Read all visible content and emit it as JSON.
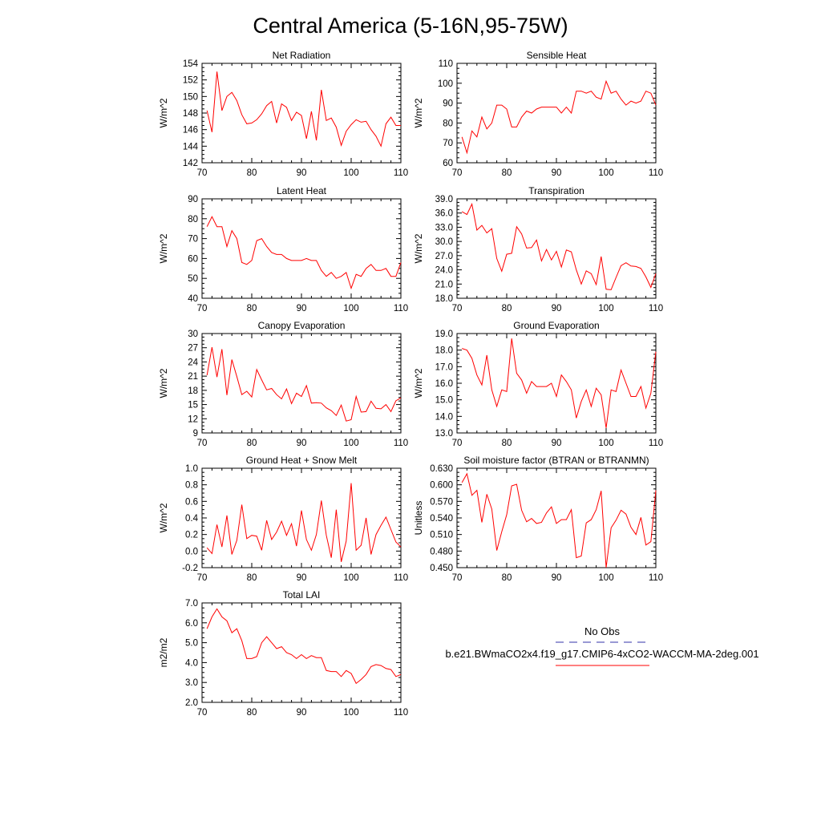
{
  "title": "Central America (5-16N,95-75W)",
  "colors": {
    "model": "#ff0000",
    "obs": "#3333aa",
    "axis": "#000000"
  },
  "legend": {
    "obs_label": "No Obs",
    "model_label": "b.e21.BWmaCO2x4.f19_g17.CMIP6-4xCO2-WACCM-MA-2deg.001"
  },
  "chart_data": [
    {
      "type": "line",
      "title": "Net Radiation",
      "ylabel": "W/m^2",
      "xlim": [
        70,
        110
      ],
      "ylim": [
        142,
        154
      ],
      "xticks": [
        70,
        80,
        90,
        100,
        110
      ],
      "yticks": [
        142,
        144,
        146,
        148,
        150,
        152,
        154
      ],
      "ytick_labels": [
        "142",
        "144",
        "146",
        "148",
        "150",
        "152",
        "154"
      ],
      "x": [
        71,
        72,
        73,
        74,
        75,
        76,
        77,
        78,
        79,
        80,
        81,
        82,
        83,
        84,
        85,
        86,
        87,
        88,
        89,
        90,
        91,
        92,
        93,
        94,
        95,
        96,
        97,
        98,
        99,
        100,
        101,
        102,
        103,
        104,
        105,
        106,
        107,
        108,
        109,
        110
      ],
      "values": [
        148.3,
        145.7,
        153.0,
        148.3,
        150.0,
        150.5,
        149.5,
        147.8,
        146.7,
        146.8,
        147.2,
        147.9,
        148.9,
        149.4,
        146.8,
        149.1,
        148.7,
        147.1,
        148.1,
        147.7,
        144.9,
        148.2,
        144.7,
        150.8,
        147.1,
        147.4,
        146.3,
        144.1,
        145.8,
        146.6,
        147.2,
        146.9,
        147.0,
        146.0,
        145.2,
        144.0,
        146.7,
        147.5,
        146.5,
        146.5
      ]
    },
    {
      "type": "line",
      "title": "Sensible Heat",
      "ylabel": "W/m^2",
      "xlim": [
        70,
        110
      ],
      "ylim": [
        60,
        110
      ],
      "xticks": [
        70,
        80,
        90,
        100,
        110
      ],
      "yticks": [
        60,
        70,
        80,
        90,
        100,
        110
      ],
      "ytick_labels": [
        "60",
        "70",
        "80",
        "90",
        "100",
        "110"
      ],
      "x": [
        71,
        72,
        73,
        74,
        75,
        76,
        77,
        78,
        79,
        80,
        81,
        82,
        83,
        84,
        85,
        86,
        87,
        88,
        89,
        90,
        91,
        92,
        93,
        94,
        95,
        96,
        97,
        98,
        99,
        100,
        101,
        102,
        103,
        104,
        105,
        106,
        107,
        108,
        109,
        110
      ],
      "values": [
        73,
        65,
        76,
        73,
        83,
        77,
        80,
        89,
        89,
        87,
        78,
        78,
        83,
        86,
        85,
        87,
        88,
        88,
        88,
        88,
        85,
        88,
        85,
        96,
        96,
        95,
        96,
        93,
        92,
        101,
        95,
        96,
        92,
        89,
        91,
        90,
        91,
        96,
        95,
        89
      ]
    },
    {
      "type": "line",
      "title": "Latent Heat",
      "ylabel": "W/m^2",
      "xlim": [
        70,
        110
      ],
      "ylim": [
        40,
        90
      ],
      "xticks": [
        70,
        80,
        90,
        100,
        110
      ],
      "yticks": [
        40,
        50,
        60,
        70,
        80,
        90
      ],
      "ytick_labels": [
        "40",
        "50",
        "60",
        "70",
        "80",
        "90"
      ],
      "x": [
        71,
        72,
        73,
        74,
        75,
        76,
        77,
        78,
        79,
        80,
        81,
        82,
        83,
        84,
        85,
        86,
        87,
        88,
        89,
        90,
        91,
        92,
        93,
        94,
        95,
        96,
        97,
        98,
        99,
        100,
        101,
        102,
        103,
        104,
        105,
        106,
        107,
        108,
        109,
        110
      ],
      "values": [
        76,
        81,
        76,
        76,
        66,
        74,
        70,
        58,
        57,
        59,
        69,
        70,
        66,
        63,
        62,
        62,
        60,
        59,
        59,
        59,
        60,
        59,
        59,
        54,
        51,
        53,
        50,
        51,
        53,
        45,
        52,
        51,
        55,
        57,
        54,
        54,
        55,
        51,
        51,
        58
      ]
    },
    {
      "type": "line",
      "title": "Transpiration",
      "ylabel": "W/m^2",
      "xlim": [
        70,
        110
      ],
      "ylim": [
        18,
        39
      ],
      "xticks": [
        70,
        80,
        90,
        100,
        110
      ],
      "yticks": [
        18,
        21,
        24,
        27,
        30,
        33,
        36,
        39
      ],
      "ytick_labels": [
        "18.0",
        "21.0",
        "24.0",
        "27.0",
        "30.0",
        "33.0",
        "36.0",
        "39.0"
      ],
      "x": [
        71,
        72,
        73,
        74,
        75,
        76,
        77,
        78,
        79,
        80,
        81,
        82,
        83,
        84,
        85,
        86,
        87,
        88,
        89,
        90,
        91,
        92,
        93,
        94,
        95,
        96,
        97,
        98,
        99,
        100,
        101,
        102,
        103,
        104,
        105,
        106,
        107,
        108,
        109,
        110
      ],
      "values": [
        36.3,
        35.7,
        37.9,
        32.4,
        33.4,
        31.8,
        32.7,
        26.4,
        23.7,
        27.3,
        27.5,
        33.1,
        31.6,
        28.6,
        28.7,
        30.3,
        25.9,
        28.3,
        26.1,
        27.9,
        24.6,
        28.2,
        27.8,
        24.0,
        21.0,
        23.8,
        23.2,
        20.9,
        26.8,
        19.9,
        19.8,
        22.4,
        24.9,
        25.5,
        24.8,
        24.7,
        24.3,
        22.5,
        20.3,
        23.2
      ]
    },
    {
      "type": "line",
      "title": "Canopy Evaporation",
      "ylabel": "W/m^2",
      "xlim": [
        70,
        110
      ],
      "ylim": [
        9,
        30
      ],
      "xticks": [
        70,
        80,
        90,
        100,
        110
      ],
      "yticks": [
        9,
        12,
        15,
        18,
        21,
        24,
        27,
        30
      ],
      "ytick_labels": [
        "9",
        "12",
        "15",
        "18",
        "21",
        "24",
        "27",
        "30"
      ],
      "x": [
        71,
        72,
        73,
        74,
        75,
        76,
        77,
        78,
        79,
        80,
        81,
        82,
        83,
        84,
        85,
        86,
        87,
        88,
        89,
        90,
        91,
        92,
        93,
        94,
        95,
        96,
        97,
        98,
        99,
        100,
        101,
        102,
        103,
        104,
        105,
        106,
        107,
        108,
        109,
        110
      ],
      "values": [
        21.2,
        27.1,
        20.8,
        26.7,
        17.0,
        24.5,
        20.9,
        17.1,
        17.8,
        16.6,
        22.4,
        20.2,
        18.1,
        18.4,
        17.1,
        16.2,
        18.3,
        15.2,
        17.4,
        16.7,
        19.0,
        15.3,
        15.4,
        15.3,
        14.3,
        13.7,
        12.7,
        14.9,
        11.5,
        11.8,
        16.7,
        13.4,
        13.5,
        15.7,
        14.2,
        14.1,
        15.0,
        13.5,
        15.8,
        16.4
      ]
    },
    {
      "type": "line",
      "title": "Ground Evaporation",
      "ylabel": "W/m^2",
      "xlim": [
        70,
        110
      ],
      "ylim": [
        13,
        19
      ],
      "xticks": [
        70,
        80,
        90,
        100,
        110
      ],
      "yticks": [
        13,
        14,
        15,
        16,
        17,
        18,
        19
      ],
      "ytick_labels": [
        "13.0",
        "14.0",
        "15.0",
        "16.0",
        "17.0",
        "18.0",
        "19.0"
      ],
      "x": [
        71,
        72,
        73,
        74,
        75,
        76,
        77,
        78,
        79,
        80,
        81,
        82,
        83,
        84,
        85,
        86,
        87,
        88,
        89,
        90,
        91,
        92,
        93,
        94,
        95,
        96,
        97,
        98,
        99,
        100,
        101,
        102,
        103,
        104,
        105,
        106,
        107,
        108,
        109,
        110
      ],
      "values": [
        18.1,
        18.0,
        17.5,
        16.5,
        15.9,
        17.7,
        15.6,
        14.6,
        15.6,
        15.5,
        18.7,
        16.6,
        16.2,
        15.4,
        16.1,
        15.8,
        15.8,
        15.8,
        16.0,
        15.2,
        16.5,
        16.1,
        15.6,
        13.9,
        14.9,
        15.6,
        14.6,
        15.7,
        15.3,
        13.3,
        15.6,
        15.5,
        16.8,
        16.0,
        15.2,
        15.2,
        15.8,
        14.5,
        15.4,
        17.9
      ]
    },
    {
      "type": "line",
      "title": "Ground Heat + Snow Melt",
      "ylabel": "W/m^2",
      "xlim": [
        70,
        110
      ],
      "ylim": [
        -0.2,
        1.0
      ],
      "xticks": [
        70,
        80,
        90,
        100,
        110
      ],
      "yticks": [
        -0.2,
        0.0,
        0.2,
        0.4,
        0.6,
        0.8,
        1.0
      ],
      "ytick_labels": [
        "-0.2",
        "0.0",
        "0.2",
        "0.4",
        "0.6",
        "0.8",
        "1.0"
      ],
      "x": [
        71,
        72,
        73,
        74,
        75,
        76,
        77,
        78,
        79,
        80,
        81,
        82,
        83,
        84,
        85,
        86,
        87,
        88,
        89,
        90,
        91,
        92,
        93,
        94,
        95,
        96,
        97,
        98,
        99,
        100,
        101,
        102,
        103,
        104,
        105,
        106,
        107,
        108,
        109,
        110
      ],
      "values": [
        0.04,
        -0.03,
        0.32,
        0.05,
        0.43,
        -0.04,
        0.13,
        0.56,
        0.15,
        0.19,
        0.18,
        0.01,
        0.37,
        0.14,
        0.23,
        0.36,
        0.19,
        0.33,
        0.06,
        0.49,
        0.14,
        0.01,
        0.2,
        0.61,
        0.19,
        -0.08,
        0.5,
        -0.13,
        0.12,
        0.82,
        0.01,
        0.07,
        0.4,
        -0.04,
        0.2,
        0.31,
        0.41,
        0.26,
        0.11,
        0.05
      ]
    },
    {
      "type": "line",
      "title": "Soil moisture factor (BTRAN or BTRANMN)",
      "ylabel": "Unitless",
      "xlim": [
        70,
        110
      ],
      "ylim": [
        0.45,
        0.63
      ],
      "xticks": [
        70,
        80,
        90,
        100,
        110
      ],
      "yticks": [
        0.45,
        0.48,
        0.51,
        0.54,
        0.57,
        0.6,
        0.63
      ],
      "ytick_labels": [
        "0.450",
        "0.480",
        "0.510",
        "0.540",
        "0.570",
        "0.600",
        "0.630"
      ],
      "x": [
        71,
        72,
        73,
        74,
        75,
        76,
        77,
        78,
        79,
        80,
        81,
        82,
        83,
        84,
        85,
        86,
        87,
        88,
        89,
        90,
        91,
        92,
        93,
        94,
        95,
        96,
        97,
        98,
        99,
        100,
        101,
        102,
        103,
        104,
        105,
        106,
        107,
        108,
        109,
        110
      ],
      "values": [
        0.604,
        0.62,
        0.581,
        0.59,
        0.532,
        0.583,
        0.556,
        0.481,
        0.515,
        0.546,
        0.598,
        0.601,
        0.554,
        0.533,
        0.539,
        0.53,
        0.532,
        0.549,
        0.56,
        0.53,
        0.537,
        0.537,
        0.555,
        0.468,
        0.471,
        0.531,
        0.537,
        0.555,
        0.589,
        0.45,
        0.522,
        0.536,
        0.554,
        0.547,
        0.523,
        0.51,
        0.541,
        0.491,
        0.497,
        0.59
      ]
    },
    {
      "type": "line",
      "title": "Total LAI",
      "ylabel": "m2/m2",
      "xlim": [
        70,
        110
      ],
      "ylim": [
        2.0,
        7.0
      ],
      "xticks": [
        70,
        80,
        90,
        100,
        110
      ],
      "yticks": [
        2,
        3,
        4,
        5,
        6,
        7
      ],
      "ytick_labels": [
        "2.0",
        "3.0",
        "4.0",
        "5.0",
        "6.0",
        "7.0"
      ],
      "x": [
        71,
        72,
        73,
        74,
        75,
        76,
        77,
        78,
        79,
        80,
        81,
        82,
        83,
        84,
        85,
        86,
        87,
        88,
        89,
        90,
        91,
        92,
        93,
        94,
        95,
        96,
        97,
        98,
        99,
        100,
        101,
        102,
        103,
        104,
        105,
        106,
        107,
        108,
        109,
        110
      ],
      "values": [
        5.7,
        6.3,
        6.7,
        6.3,
        6.1,
        5.5,
        5.7,
        5.1,
        4.2,
        4.2,
        4.3,
        5.0,
        5.3,
        5.0,
        4.7,
        4.8,
        4.5,
        4.4,
        4.2,
        4.4,
        4.2,
        4.35,
        4.25,
        4.25,
        3.6,
        3.55,
        3.55,
        3.3,
        3.6,
        3.45,
        2.95,
        3.15,
        3.4,
        3.8,
        3.9,
        3.85,
        3.7,
        3.65,
        3.3,
        3.4
      ]
    }
  ]
}
